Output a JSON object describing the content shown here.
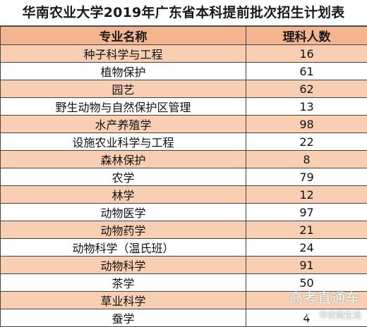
{
  "title": "华南农业大学2019年广东省本科提前批次招生计划表",
  "table": {
    "headers": [
      "专业名称",
      "理科人数"
    ],
    "rows": [
      {
        "major": "种子科学与工程",
        "count": "16"
      },
      {
        "major": "植物保护",
        "count": "61"
      },
      {
        "major": "园艺",
        "count": "62"
      },
      {
        "major": "野生动物与自然保护区管理",
        "count": "13"
      },
      {
        "major": "水产养殖学",
        "count": "98"
      },
      {
        "major": "设施农业科学与工程",
        "count": "22"
      },
      {
        "major": "森林保护",
        "count": "8"
      },
      {
        "major": "农学",
        "count": "79"
      },
      {
        "major": "林学",
        "count": "12"
      },
      {
        "major": "动物医学",
        "count": "97"
      },
      {
        "major": "动物药学",
        "count": "21"
      },
      {
        "major": "动物科学（温氏班）",
        "count": "24"
      },
      {
        "major": "动物科学",
        "count": "91"
      },
      {
        "major": "茶学",
        "count": "50"
      },
      {
        "major": "草业科学",
        "count": ""
      },
      {
        "major": "蚕学",
        "count": "4"
      }
    ]
  },
  "colors": {
    "header_bg": "#f3b590",
    "shade_row_bg": "#f8cfb2",
    "border": "#444444"
  },
  "watermark": {
    "main": "高考直通车",
    "sub": "华农微生活"
  }
}
